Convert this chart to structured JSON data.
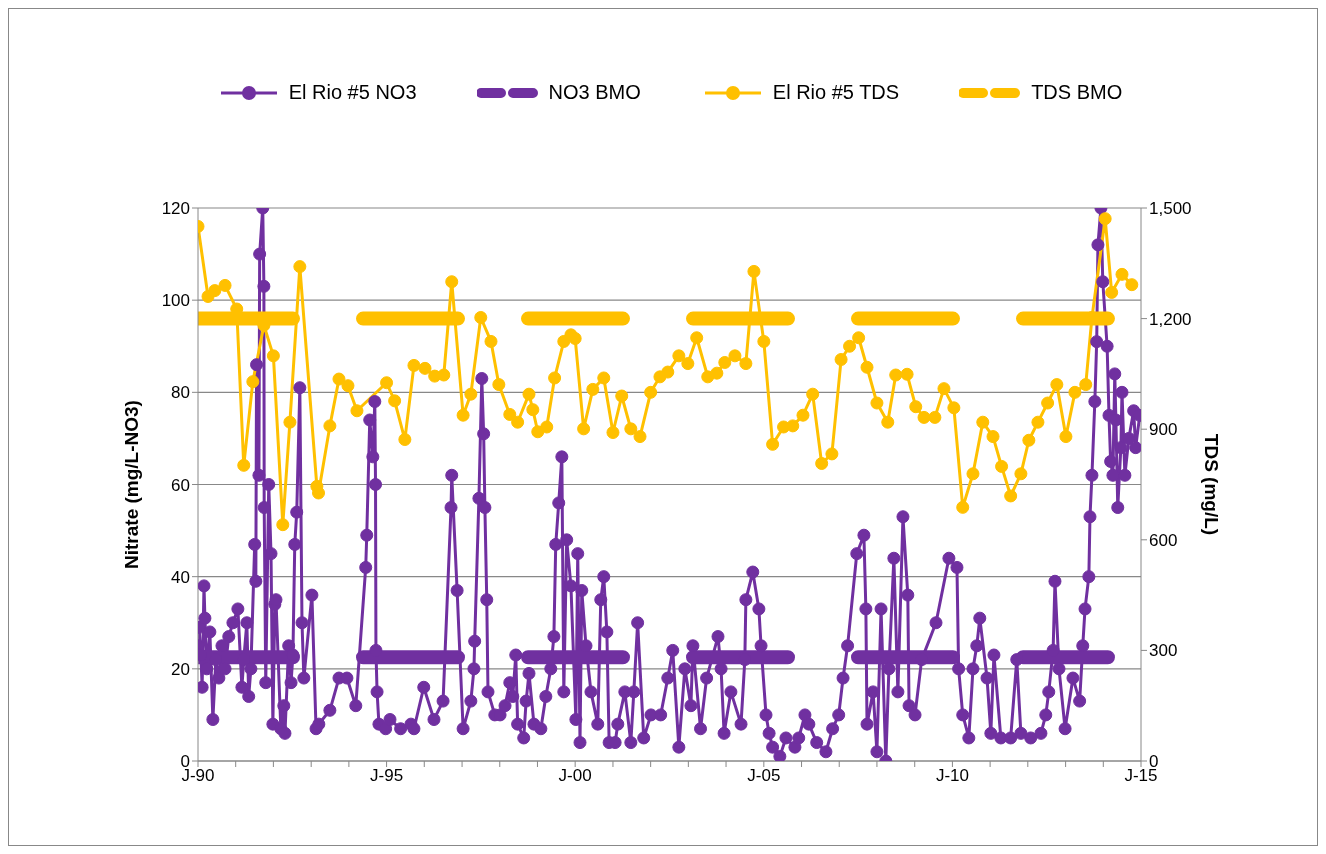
{
  "chart_data": {
    "type": "line",
    "ylabel": "Nitrate (mg/L-NO3)",
    "y2label": "TDS (mg/L)",
    "xlim": [
      "1990-01-01",
      "2015-01-01"
    ],
    "xticks": [
      {
        "value": "1990-01-01",
        "label": "J-90"
      },
      {
        "value": "1991-01-01",
        "label": null
      },
      {
        "value": "1992-01-01",
        "label": null
      },
      {
        "value": "1993-01-01",
        "label": null
      },
      {
        "value": "1994-01-01",
        "label": null
      },
      {
        "value": "1995-01-01",
        "label": "J-95"
      },
      {
        "value": "1996-01-01",
        "label": null
      },
      {
        "value": "1997-01-01",
        "label": null
      },
      {
        "value": "1998-01-01",
        "label": null
      },
      {
        "value": "1999-01-01",
        "label": null
      },
      {
        "value": "2000-01-01",
        "label": "J-00"
      },
      {
        "value": "2001-01-01",
        "label": null
      },
      {
        "value": "2002-01-01",
        "label": null
      },
      {
        "value": "2003-01-01",
        "label": null
      },
      {
        "value": "2004-01-01",
        "label": null
      },
      {
        "value": "2005-01-01",
        "label": "J-05"
      },
      {
        "value": "2006-01-01",
        "label": null
      },
      {
        "value": "2007-01-01",
        "label": null
      },
      {
        "value": "2008-01-01",
        "label": null
      },
      {
        "value": "2009-01-01",
        "label": null
      },
      {
        "value": "2010-01-01",
        "label": "J-10"
      },
      {
        "value": "2011-01-01",
        "label": null
      },
      {
        "value": "2012-01-01",
        "label": null
      },
      {
        "value": "2013-01-01",
        "label": null
      },
      {
        "value": "2014-01-01",
        "label": null
      },
      {
        "value": "2015-01-01",
        "label": "J-15"
      }
    ],
    "ylim": [
      0,
      120
    ],
    "yticks": [
      0,
      20,
      40,
      60,
      80,
      100,
      120
    ],
    "y2lim": [
      0,
      1500
    ],
    "y2ticks": [
      0,
      300,
      600,
      900,
      {
        "value": 1200,
        "label": "1,200"
      },
      {
        "value": 1500,
        "label": "1,500"
      }
    ],
    "grid": "y",
    "legend": "top",
    "marker": "circle",
    "line_style": "solid",
    "series": [
      {
        "name": "El Rio #5 NO3",
        "color": "#7030a0",
        "x": [
          "1990-01-01",
          "1990-01-11",
          "1990-01-29",
          "1990-02-10",
          "1990-02-28",
          "1990-03-09",
          "1990-03-27",
          "1990-04-26",
          "1990-05-25",
          "1990-06-23",
          "1990-07-22",
          "1990-08-21",
          "1990-09-20",
          "1990-10-26",
          "1990-12-05",
          "1991-01-22",
          "1991-03-02",
          "1991-03-20",
          "1991-04-19",
          "1991-05-07",
          "1991-05-28",
          "1991-07-04",
          "1991-07-15",
          "1991-07-22",
          "1991-08-14",
          "1991-08-21",
          "1991-09-20",
          "1991-10-01",
          "1991-10-04",
          "1991-10-19",
          "1991-11-17",
          "1991-12-09",
          "1991-12-27",
          "1992-01-15",
          "1992-01-26",
          "1992-03-13",
          "1992-04-11",
          "1992-04-22",
          "1992-05-28",
          "1992-06-20",
          "1992-07-08",
          "1992-07-26",
          "1992-08-14",
          "1992-09-13",
          "1992-10-04",
          "1992-10-22",
          "1993-01-08",
          "1993-02-17",
          "1993-03-16",
          "1993-07-01",
          "1993-09-27",
          "1993-12-13",
          "1994-03-09",
          "1994-06-13",
          "1994-06-23",
          "1994-07-22",
          "1994-08-21",
          "1994-09-09",
          "1994-09-16",
          "1994-09-20",
          "1994-10-01",
          "1994-10-19",
          "1994-12-23",
          "1995-02-03",
          "1995-05-17",
          "1995-08-25",
          "1995-09-23",
          "1995-12-27",
          "1996-04-04",
          "1996-07-01",
          "1996-09-16",
          "1996-09-23",
          "1996-11-14",
          "1997-01-11",
          "1997-03-27",
          "1997-04-26",
          "1997-05-03",
          "1997-06-13",
          "1997-07-11",
          "1997-07-29",
          "1997-08-10",
          "1997-08-28",
          "1997-09-09",
          "1997-11-14",
          "1998-01-04",
          "1998-02-21",
          "1998-04-08",
          "1998-05-07",
          "1998-06-05",
          "1998-06-23",
          "1998-08-21",
          "1998-09-13",
          "1998-10-11",
          "1998-11-28",
          "1999-02-03",
          "1999-03-23",
          "1999-05-10",
          "1999-06-09",
          "1999-06-27",
          "1999-07-26",
          "1999-08-25",
          "1999-09-13",
          "1999-10-11",
          "1999-11-21",
          "2000-01-08",
          "2000-01-26",
          "2000-02-17",
          "2000-03-05",
          "2000-04-15",
          "2000-06-02",
          "2000-08-07",
          "2000-09-05",
          "2000-10-04",
          "2000-11-03",
          "2000-11-25",
          "2001-01-22",
          "2001-02-17",
          "2001-04-26",
          "2001-06-23",
          "2001-07-22",
          "2001-08-28",
          "2001-10-26",
          "2002-01-04",
          "2002-04-08",
          "2002-06-16",
          "2002-08-03",
          "2002-10-01",
          "2002-11-28",
          "2003-01-26",
          "2003-02-14",
          "2003-04-29",
          "2003-06-27",
          "2003-10-15",
          "2003-11-14",
          "2003-12-13",
          "2004-02-17",
          "2004-05-25",
          "2004-07-01",
          "2004-07-11",
          "2004-09-16",
          "2004-11-14",
          "2004-12-05",
          "2005-01-22",
          "2005-02-21",
          "2005-03-27",
          "2005-06-05",
          "2005-08-03",
          "2005-10-29",
          "2005-12-05",
          "2006-02-03",
          "2006-03-13",
          "2006-05-28",
          "2006-08-25",
          "2006-10-29",
          "2006-12-27",
          "2007-02-07",
          "2007-03-23",
          "2007-06-20",
          "2007-08-28",
          "2007-09-16",
          "2007-09-27",
          "2007-11-25",
          "2008-01-01",
          "2008-02-10",
          "2008-03-27",
          "2008-04-26",
          "2008-06-13",
          "2008-07-22",
          "2008-09-09",
          "2008-10-26",
          "2008-11-07",
          "2009-01-04",
          "2009-03-09",
          "2009-07-26",
          "2009-11-28",
          "2010-02-14",
          "2010-03-02",
          "2010-04-11",
          "2010-06-09",
          "2010-07-19",
          "2010-08-25",
          "2010-09-23",
          "2010-12-02",
          "2011-01-08",
          "2011-02-07",
          "2011-04-15",
          "2011-07-19",
          "2011-09-16",
          "2011-10-26",
          "2012-01-29",
          "2012-05-07",
          "2012-06-23",
          "2012-07-22",
          "2012-09-02",
          "2012-09-20",
          "2012-10-29",
          "2012-12-27",
          "2013-03-13",
          "2013-05-17",
          "2013-06-16",
          "2013-07-08",
          "2013-08-14",
          "2013-08-25",
          "2013-09-13",
          "2013-10-11",
          "2013-10-29",
          "2013-11-10",
          "2013-12-09",
          "2013-12-27",
          "2014-02-07",
          "2014-02-25",
          "2014-03-13",
          "2014-04-04",
          "2014-04-22",
          "2014-05-03",
          "2014-05-21",
          "2014-06-20",
          "2014-07-01",
          "2014-07-29",
          "2014-09-05",
          "2014-10-22",
          "2014-11-10",
          "2014-12-20"
        ],
        "values": [
          25,
          29,
          23,
          16,
          38,
          31,
          20,
          28,
          9,
          22,
          18,
          25,
          20,
          27,
          30,
          33,
          16,
          22,
          30,
          14,
          20,
          47,
          39,
          86,
          62,
          110,
          120,
          103,
          55,
          17,
          60,
          45,
          8,
          34,
          35,
          7,
          12,
          6,
          25,
          17,
          23,
          47,
          54,
          81,
          30,
          18,
          36,
          7,
          8,
          11,
          18,
          18,
          12,
          42,
          49,
          74,
          66,
          78,
          60,
          24,
          15,
          8,
          7,
          9,
          7,
          8,
          7,
          16,
          9,
          13,
          55,
          62,
          37,
          7,
          13,
          20,
          26,
          57,
          83,
          71,
          55,
          35,
          15,
          10,
          10,
          12,
          17,
          14,
          23,
          8,
          5,
          13,
          19,
          8,
          7,
          14,
          20,
          27,
          47,
          56,
          66,
          15,
          48,
          38,
          9,
          45,
          4,
          37,
          25,
          15,
          8,
          35,
          40,
          28,
          4,
          4,
          8,
          15,
          4,
          15,
          30,
          5,
          10,
          10,
          18,
          24,
          3,
          20,
          12,
          25,
          7,
          18,
          27,
          20,
          6,
          15,
          8,
          22,
          35,
          41,
          33,
          25,
          10,
          6,
          3,
          1,
          5,
          3,
          5,
          10,
          8,
          4,
          2,
          7,
          10,
          18,
          25,
          45,
          49,
          33,
          8,
          15,
          2,
          33,
          0,
          20,
          44,
          15,
          53,
          36,
          12,
          10,
          22,
          30,
          44,
          42,
          20,
          10,
          5,
          20,
          25,
          31,
          18,
          6,
          23,
          5,
          5,
          22,
          6,
          5,
          6,
          10,
          15,
          24,
          39,
          20,
          7,
          18,
          13,
          25,
          33,
          40,
          53,
          62,
          78,
          91,
          112,
          120,
          104,
          90,
          75,
          65,
          62,
          84,
          74,
          55,
          68,
          80,
          62,
          70,
          76,
          68,
          75
        ]
      },
      {
        "name": "NO3 BMO",
        "color": "#7030a0",
        "line_style": "dashed",
        "marker": "none",
        "x": [
          "1990-01-01",
          "2014-02-15"
        ],
        "values": [
          22.5,
          22.5
        ]
      },
      {
        "name": "El Rio #5 TDS",
        "color": "#ffc000",
        "axis": "y2",
        "x": [
          "1990-01-01",
          "1990-04-08",
          "1990-06-13",
          "1990-09-20",
          "1991-01-11",
          "1991-03-20",
          "1991-06-16",
          "1991-10-01",
          "1992-01-01",
          "1992-04-01",
          "1992-06-09",
          "1992-09-13",
          "1993-02-25",
          "1993-03-13",
          "1993-07-01",
          "1993-09-27",
          "1993-12-23",
          "1994-03-20",
          "1995-01-01",
          "1995-03-20",
          "1995-06-27",
          "1995-09-23",
          "1996-01-08",
          "1996-04-11",
          "1996-07-08",
          "1996-09-23",
          "1997-01-11",
          "1997-03-27",
          "1997-07-01",
          "1997-10-08",
          "1997-12-23",
          "1998-04-08",
          "1998-06-23",
          "1998-10-11",
          "1998-11-17",
          "1999-01-04",
          "1999-04-01",
          "1999-06-16",
          "1999-09-13",
          "1999-11-21",
          "2000-01-01",
          "2000-03-23",
          "2000-06-20",
          "2000-10-04",
          "2001-01-01",
          "2001-03-27",
          "2001-06-23",
          "2001-09-20",
          "2002-01-01",
          "2002-04-01",
          "2002-06-16",
          "2002-10-01",
          "2002-12-27",
          "2003-03-23",
          "2003-07-08",
          "2003-10-04",
          "2003-12-20",
          "2004-03-27",
          "2004-07-11",
          "2004-09-27",
          "2005-01-01",
          "2005-03-27",
          "2005-07-11",
          "2005-10-08",
          "2006-01-15",
          "2006-04-19",
          "2006-07-15",
          "2006-10-22",
          "2007-01-19",
          "2007-04-11",
          "2007-07-08",
          "2007-09-27",
          "2008-01-01",
          "2008-04-15",
          "2008-07-01",
          "2008-10-19",
          "2009-01-11",
          "2009-04-01",
          "2009-07-15",
          "2009-10-11",
          "2010-01-15",
          "2010-04-11",
          "2010-07-19",
          "2010-10-22",
          "2011-01-29",
          "2011-04-22",
          "2011-07-19",
          "2011-10-26",
          "2012-01-11",
          "2012-04-08",
          "2012-07-11",
          "2012-10-08",
          "2013-01-04",
          "2013-04-01",
          "2013-07-15",
          "2013-09-13",
          "2014-01-19",
          "2014-03-23",
          "2014-07-01",
          "2014-10-04"
        ],
        "values": [
          1450,
          1260,
          1276,
          1290,
          1226,
          802,
          1029,
          1182,
          1099,
          641,
          919,
          1341,
          745,
          727,
          909,
          1036,
          1018,
          950,
          1026,
          977,
          872,
          1073,
          1065,
          1044,
          1047,
          1300,
          938,
          995,
          1203,
          1138,
          1021,
          940,
          919,
          995,
          953,
          893,
          906,
          1039,
          1138,
          1156,
          1146,
          901,
          1008,
          1039,
          891,
          990,
          901,
          880,
          1000,
          1042,
          1055,
          1099,
          1078,
          1148,
          1042,
          1052,
          1081,
          1099,
          1078,
          1328,
          1138,
          859,
          906,
          909,
          938,
          995,
          807,
          833,
          1089,
          1125,
          1148,
          1068,
          971,
          919,
          1047,
          1049,
          961,
          932,
          932,
          1010,
          958,
          688,
          779,
          919,
          880,
          799,
          719,
          779,
          870,
          919,
          971,
          1021,
          880,
          1000,
          1021,
          1203,
          1471,
          1271,
          1320,
          1292
        ]
      },
      {
        "name": "TDS BMO",
        "color": "#ffc000",
        "axis": "y2",
        "line_style": "dashed",
        "marker": "none",
        "x": [
          "1990-01-01",
          "2014-02-15"
        ],
        "values": [
          1200,
          1200
        ]
      }
    ]
  }
}
